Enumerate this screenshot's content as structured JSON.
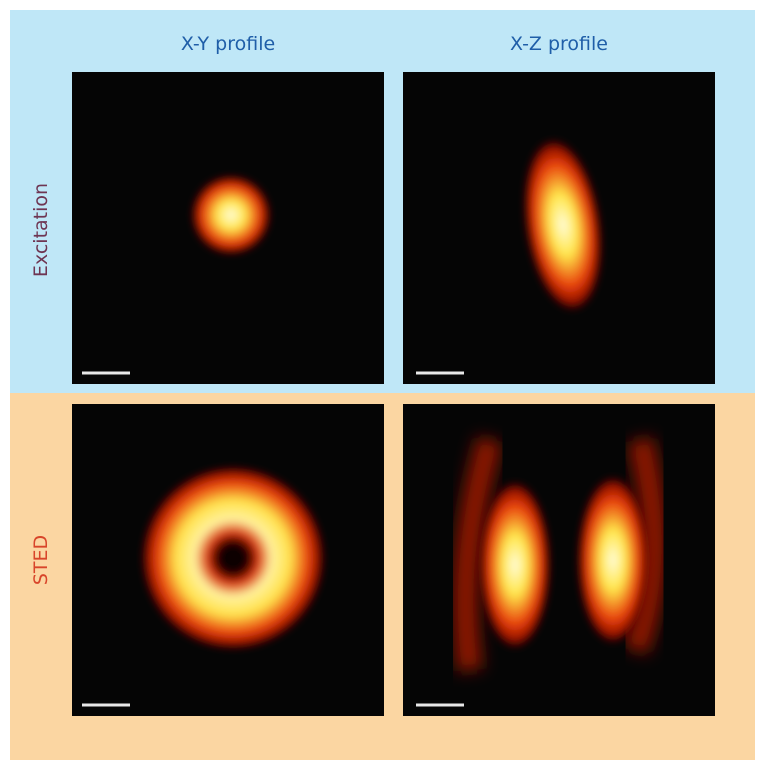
{
  "columns": [
    "X-Y profile",
    "X-Z profile"
  ],
  "rows": [
    "Excitation",
    "STED"
  ]
}
